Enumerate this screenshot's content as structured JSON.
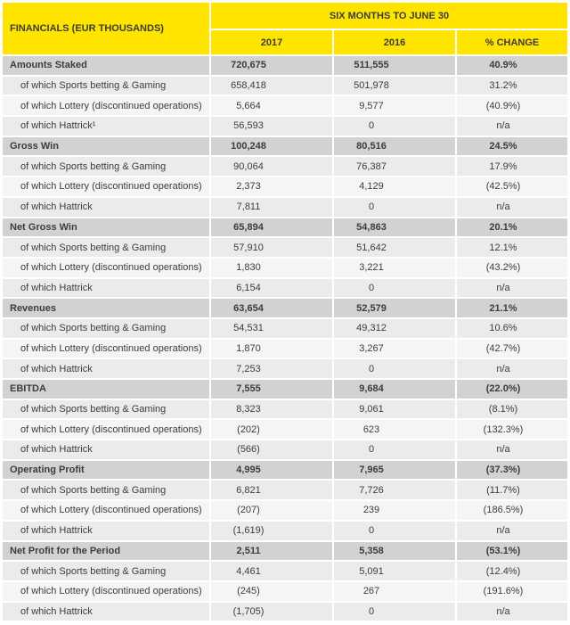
{
  "colors": {
    "header_bg": "#FFE400",
    "section_bg": "#D2D2D2",
    "subrow_bg_a": "#EBEBEB",
    "subrow_bg_b": "#F5F5F5",
    "text": "#3C3C3B"
  },
  "header": {
    "title": "FINANCIALS (EUR THOUSANDS)",
    "period": "SIX MONTHS TO JUNE 30",
    "columns": [
      "2017",
      "2016",
      "% CHANGE"
    ]
  },
  "table": {
    "rows": [
      {
        "type": "section",
        "label": "Amounts Staked",
        "y2017": "720,675",
        "y2016": "511,555",
        "change": "40.9%"
      },
      {
        "type": "sub",
        "label": "of which Sports betting & Gaming",
        "y2017": "658,418",
        "y2016": "501,978",
        "change": "31.2%"
      },
      {
        "type": "sub",
        "label": "of which Lottery (discontinued operations)",
        "y2017": "5,664",
        "y2016": "9,577",
        "change": "(40.9%)"
      },
      {
        "type": "sub",
        "label": "of which Hattrick¹",
        "y2017": "56,593",
        "y2016": "0",
        "change": "n/a"
      },
      {
        "type": "section",
        "label": "Gross Win",
        "y2017": "100,248",
        "y2016": "80,516",
        "change": "24.5%"
      },
      {
        "type": "sub",
        "label": "of which Sports betting & Gaming",
        "y2017": "90,064",
        "y2016": "76,387",
        "change": "17.9%"
      },
      {
        "type": "sub",
        "label": "of which Lottery (discontinued operations)",
        "y2017": "2,373",
        "y2016": "4,129",
        "change": "(42.5%)"
      },
      {
        "type": "sub",
        "label": "of which Hattrick",
        "y2017": "7,811",
        "y2016": "0",
        "change": "n/a"
      },
      {
        "type": "section",
        "label": "Net Gross Win",
        "y2017": "65,894",
        "y2016": "54,863",
        "change": "20.1%"
      },
      {
        "type": "sub",
        "label": "of which Sports betting & Gaming",
        "y2017": "57,910",
        "y2016": "51,642",
        "change": "12.1%"
      },
      {
        "type": "sub",
        "label": "of which Lottery (discontinued operations)",
        "y2017": "1,830",
        "y2016": "3,221",
        "change": "(43.2%)"
      },
      {
        "type": "sub",
        "label": "of which Hattrick",
        "y2017": "6,154",
        "y2016": "0",
        "change": "n/a"
      },
      {
        "type": "section",
        "label": "Revenues",
        "y2017": "63,654",
        "y2016": "52,579",
        "change": "21.1%"
      },
      {
        "type": "sub",
        "label": "of which Sports betting & Gaming",
        "y2017": "54,531",
        "y2016": "49,312",
        "change": "10.6%"
      },
      {
        "type": "sub",
        "label": "of which Lottery (discontinued operations)",
        "y2017": "1,870",
        "y2016": "3,267",
        "change": "(42.7%)"
      },
      {
        "type": "sub",
        "label": "of which Hattrick",
        "y2017": "7,253",
        "y2016": "0",
        "change": "n/a"
      },
      {
        "type": "section",
        "label": "EBITDA",
        "y2017": "7,555",
        "y2016": "9,684",
        "change": "(22.0%)"
      },
      {
        "type": "sub",
        "label": "of which Sports betting & Gaming",
        "y2017": "8,323",
        "y2016": "9,061",
        "change": "(8.1%)"
      },
      {
        "type": "sub",
        "label": "of which Lottery (discontinued operations)",
        "y2017": "(202)",
        "y2016": "623",
        "change": "(132.3%)"
      },
      {
        "type": "sub",
        "label": "of which Hattrick",
        "y2017": "(566)",
        "y2016": "0",
        "change": "n/a"
      },
      {
        "type": "section",
        "label": "Operating Profit",
        "y2017": "4,995",
        "y2016": "7,965",
        "change": "(37.3%)"
      },
      {
        "type": "sub",
        "label": "of which Sports betting & Gaming",
        "y2017": "6,821",
        "y2016": "7,726",
        "change": "(11.7%)"
      },
      {
        "type": "sub",
        "label": "of which Lottery (discontinued operations)",
        "y2017": "(207)",
        "y2016": "239",
        "change": "(186.5%)"
      },
      {
        "type": "sub",
        "label": "of which Hattrick",
        "y2017": "(1,619)",
        "y2016": "0",
        "change": "n/a"
      },
      {
        "type": "section",
        "label": "Net Profit for the Period",
        "y2017": "2,511",
        "y2016": "5,358",
        "change": "(53.1%)"
      },
      {
        "type": "sub",
        "label": "of which Sports betting & Gaming",
        "y2017": "4,461",
        "y2016": "5,091",
        "change": "(12.4%)"
      },
      {
        "type": "sub",
        "label": "of which Lottery (discontinued operations)",
        "y2017": "(245)",
        "y2016": "267",
        "change": "(191.6%)"
      },
      {
        "type": "sub",
        "label": "of which Hattrick",
        "y2017": "(1,705)",
        "y2016": "0",
        "change": "n/a"
      }
    ]
  }
}
